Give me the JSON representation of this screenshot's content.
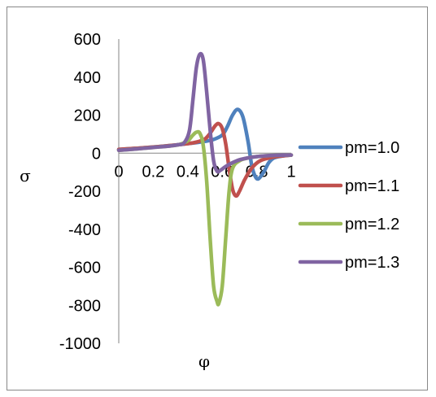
{
  "chart_data": {
    "type": "line",
    "title": "",
    "xlabel": "φ",
    "ylabel": "σ",
    "xlim": [
      0,
      1
    ],
    "ylim": [
      -1000,
      600
    ],
    "xticks": [
      "0",
      "0.2",
      "0.4",
      "0.6",
      "0.8",
      "1"
    ],
    "xtick_values": [
      0,
      0.2,
      0.4,
      0.6,
      0.8,
      1.0
    ],
    "yticks": [
      "600",
      "400",
      "200",
      "0",
      "-200",
      "-400",
      "-600",
      "-800",
      "-1000"
    ],
    "ytick_values": [
      600,
      400,
      200,
      0,
      -200,
      -400,
      -600,
      -800,
      -1000
    ],
    "grid": false,
    "legend_position": "right",
    "series": [
      {
        "name": "pm=1.0",
        "color": "#4f81bd",
        "x": [
          0.0,
          0.1,
          0.2,
          0.3,
          0.4,
          0.5,
          0.55,
          0.6,
          0.63,
          0.66,
          0.69,
          0.72,
          0.75,
          0.77,
          0.79,
          0.81,
          0.84,
          0.87,
          0.9,
          0.95,
          1.0
        ],
        "y": [
          20,
          25,
          32,
          40,
          50,
          62,
          72,
          95,
          140,
          200,
          230,
          190,
          60,
          -60,
          -120,
          -135,
          -100,
          -50,
          -25,
          -15,
          -10
        ]
      },
      {
        "name": "pm=1.1",
        "color": "#c0504d",
        "x": [
          0.0,
          0.1,
          0.2,
          0.3,
          0.4,
          0.45,
          0.5,
          0.53,
          0.56,
          0.58,
          0.6,
          0.62,
          0.64,
          0.66,
          0.68,
          0.7,
          0.73,
          0.77,
          0.82,
          0.9,
          1.0
        ],
        "y": [
          20,
          25,
          32,
          40,
          50,
          58,
          75,
          105,
          145,
          155,
          130,
          50,
          -80,
          -190,
          -225,
          -200,
          -140,
          -80,
          -40,
          -20,
          -10
        ]
      },
      {
        "name": "pm=1.2",
        "color": "#9bbb59",
        "x": [
          0.0,
          0.1,
          0.2,
          0.3,
          0.35,
          0.4,
          0.43,
          0.45,
          0.47,
          0.49,
          0.51,
          0.53,
          0.55,
          0.57,
          0.58,
          0.6,
          0.62,
          0.64,
          0.66,
          0.7,
          0.75,
          0.8,
          0.9,
          1.0
        ],
        "y": [
          15,
          22,
          30,
          38,
          45,
          65,
          95,
          110,
          105,
          40,
          -150,
          -450,
          -700,
          -780,
          -790,
          -700,
          -450,
          -200,
          -80,
          -40,
          -25,
          -18,
          -12,
          -10
        ]
      },
      {
        "name": "pm=1.3",
        "color": "#8064a2",
        "x": [
          0.0,
          0.1,
          0.2,
          0.3,
          0.35,
          0.38,
          0.41,
          0.43,
          0.45,
          0.47,
          0.49,
          0.51,
          0.53,
          0.55,
          0.57,
          0.59,
          0.62,
          0.66,
          0.7,
          0.75,
          0.8,
          0.9,
          1.0
        ],
        "y": [
          15,
          22,
          30,
          38,
          45,
          55,
          120,
          280,
          450,
          520,
          490,
          320,
          120,
          -40,
          -95,
          -90,
          -70,
          -50,
          -35,
          -25,
          -18,
          -12,
          -10
        ]
      }
    ]
  }
}
